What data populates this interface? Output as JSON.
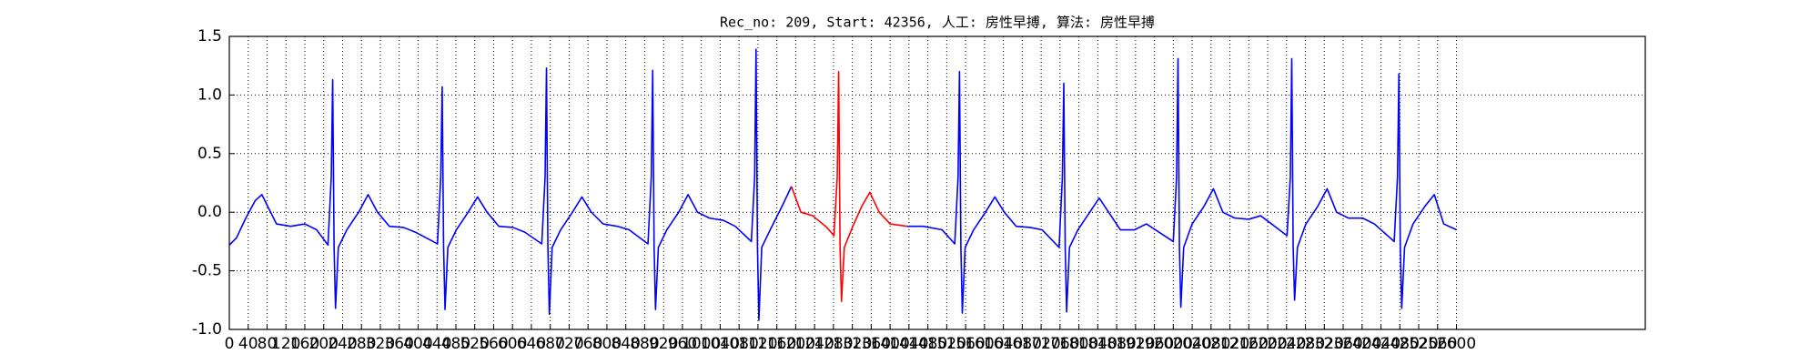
{
  "chart_data": {
    "type": "line",
    "title": "Rec_no: 209, Start: 42356, 人工: 房性早搏, 算法: 房性早搏",
    "xlim": [
      0,
      3000
    ],
    "xticks": [
      0,
      40,
      80,
      120,
      160,
      200,
      240,
      280,
      320,
      360,
      400,
      440,
      480,
      520,
      560,
      600,
      640,
      680,
      720,
      760,
      800,
      840,
      880,
      920,
      960,
      1000,
      1040,
      1080,
      1120,
      1160,
      1200,
      1240,
      1280,
      1320,
      1360,
      1400,
      1440,
      1480,
      1520,
      1560,
      1600,
      1640,
      1680,
      1720,
      1760,
      1800,
      1840,
      1880,
      1920,
      1960,
      2000,
      2040,
      2080,
      2120,
      2160,
      2200,
      2240,
      2280,
      2320,
      2360,
      2400,
      2440,
      2480,
      2520,
      2560,
      2600
    ],
    "ylim": [
      -1.0,
      1.5
    ],
    "yticks": [
      {
        "value": -1.0,
        "label": "-1.0"
      },
      -0.5,
      {
        "value": 0.0,
        "label": "0.0"
      },
      0.5,
      {
        "value": 1.0,
        "label": "1.0"
      },
      1.5
    ],
    "grid": true,
    "series": [
      {
        "color": "#0000ff",
        "x": [
          0,
          15,
          35,
          55,
          69,
          85,
          100,
          130,
          160,
          185,
          209,
          216,
          219,
          222,
          225,
          231,
          249,
          274,
          294,
          314,
          339,
          369,
          394,
          441,
          448,
          451,
          454,
          457,
          463,
          481,
          506,
          526,
          546,
          571,
          601,
          626,
          662,
          669,
          672,
          675,
          678,
          684,
          702,
          727,
          747,
          767,
          792,
          822,
          847,
          887,
          894,
          897,
          900,
          903,
          909,
          927,
          952,
          972,
          992,
          1017,
          1047,
          1072,
          1106,
          1113,
          1116,
          1119,
          1122,
          1128,
          1146,
          1171,
          1191,
          1300,
          1436,
          1470,
          1510,
          1537,
          1544,
          1547,
          1550,
          1553,
          1559,
          1577,
          1602,
          1622,
          1642,
          1667,
          1697,
          1722,
          1758,
          1765,
          1768,
          1771,
          1774,
          1780,
          1798,
          1823,
          1843,
          1863,
          1888,
          1918,
          1943,
          2000,
          2007,
          2010,
          2013,
          2016,
          2022,
          2040,
          2065,
          2085,
          2105,
          2130,
          2160,
          2185,
          2241,
          2248,
          2251,
          2254,
          2257,
          2263,
          2281,
          2306,
          2326,
          2346,
          2371,
          2401,
          2426,
          2468,
          2475,
          2478,
          2481,
          2484,
          2490,
          2508,
          2533,
          2553,
          2573,
          2600
        ],
        "values": [
          -0.28,
          -0.22,
          -0.05,
          0.1,
          0.15,
          0.02,
          -0.1,
          -0.12,
          -0.1,
          -0.15,
          -0.28,
          0.3,
          1.13,
          -0.3,
          -0.82,
          -0.3,
          -0.15,
          0.0,
          0.15,
          0.0,
          -0.12,
          -0.13,
          -0.17,
          -0.27,
          0.3,
          1.07,
          -0.3,
          -0.83,
          -0.3,
          -0.15,
          0.0,
          0.13,
          0.0,
          -0.12,
          -0.13,
          -0.17,
          -0.27,
          0.3,
          1.23,
          -0.3,
          -0.87,
          -0.3,
          -0.15,
          0,
          0.13,
          0,
          -0.1,
          -0.12,
          -0.15,
          -0.27,
          0.3,
          1.21,
          -0.3,
          -0.83,
          -0.3,
          -0.15,
          0,
          0.15,
          0,
          -0.05,
          -0.07,
          -0.12,
          -0.25,
          0.3,
          1.39,
          -0.3,
          -0.92,
          -0.3,
          -0.15,
          0.05,
          0.22,
          null,
          -0.12,
          -0.12,
          -0.15,
          -0.27,
          0.3,
          1.2,
          -0.3,
          -0.86,
          -0.3,
          -0.15,
          0,
          0.13,
          0,
          -0.12,
          -0.13,
          -0.15,
          -0.3,
          0.3,
          1.1,
          -0.3,
          -0.85,
          -0.3,
          -0.15,
          0,
          0.12,
          0,
          -0.15,
          -0.15,
          -0.1,
          -0.25,
          0.3,
          1.31,
          -0.3,
          -0.81,
          -0.3,
          -0.1,
          0.05,
          0.2,
          0,
          -0.05,
          -0.06,
          -0.03,
          -0.2,
          0.3,
          1.31,
          -0.3,
          -0.75,
          -0.3,
          -0.1,
          0.05,
          0.2,
          0,
          -0.05,
          -0.05,
          -0.1,
          -0.25,
          0.3,
          1.18,
          -0.3,
          -0.82,
          -0.3,
          -0.1,
          0.05,
          0.15,
          -0.1,
          -0.15
        ]
      },
      {
        "color": "#ff0000",
        "x": [
          1191,
          1211,
          1236,
          1266,
          1281,
          1288,
          1291,
          1294,
          1297,
          1303,
          1321,
          1340,
          1357,
          1377,
          1400,
          1436
        ],
        "values": [
          0.22,
          0.0,
          -0.03,
          -0.13,
          -0.2,
          0.3,
          1.2,
          -0.3,
          -0.76,
          -0.3,
          -0.12,
          0.05,
          0.17,
          0.0,
          -0.1,
          -0.12
        ]
      }
    ]
  }
}
